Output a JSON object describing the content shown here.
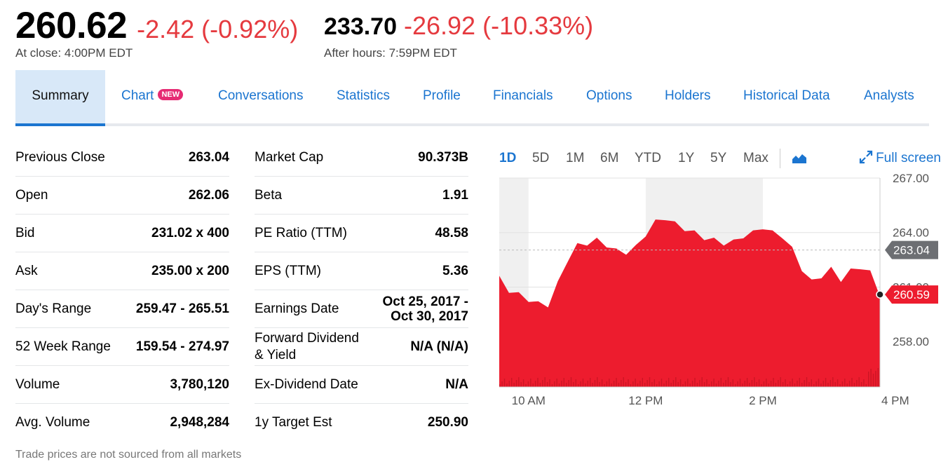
{
  "quote": {
    "price": "260.62",
    "change": "-2.42 (-0.92%)",
    "close_label": "At close: 4:00PM EDT",
    "after_price": "233.70",
    "after_change": "-26.92 (-10.33%)",
    "after_label": "After hours: 7:59PM EDT"
  },
  "tabs": [
    {
      "label": "Summary"
    },
    {
      "label": "Chart",
      "badge": "NEW"
    },
    {
      "label": "Conversations"
    },
    {
      "label": "Statistics"
    },
    {
      "label": "Profile"
    },
    {
      "label": "Financials"
    },
    {
      "label": "Options"
    },
    {
      "label": "Holders"
    },
    {
      "label": "Historical Data"
    },
    {
      "label": "Analysts"
    }
  ],
  "summary_left": [
    {
      "label": "Previous Close",
      "value": "263.04"
    },
    {
      "label": "Open",
      "value": "262.06"
    },
    {
      "label": "Bid",
      "value": "231.02 x 400"
    },
    {
      "label": "Ask",
      "value": "235.00 x 200"
    },
    {
      "label": "Day's Range",
      "value": "259.47 - 265.51"
    },
    {
      "label": "52 Week Range",
      "value": "159.54 - 274.97"
    },
    {
      "label": "Volume",
      "value": "3,780,120"
    },
    {
      "label": "Avg. Volume",
      "value": "2,948,284"
    }
  ],
  "summary_right": [
    {
      "label": "Market Cap",
      "value": "90.373B"
    },
    {
      "label": "Beta",
      "value": "1.91"
    },
    {
      "label": "PE Ratio (TTM)",
      "value": "48.58"
    },
    {
      "label": "EPS (TTM)",
      "value": "5.36"
    },
    {
      "label": "Earnings Date",
      "value_line1": "Oct 25, 2017 -",
      "value_line2": "Oct 30, 2017"
    },
    {
      "label_line1": "Forward Dividend",
      "label_line2": "& Yield",
      "value": "N/A (N/A)"
    },
    {
      "label": "Ex-Dividend Date",
      "value": "N/A"
    },
    {
      "label": "1y Target Est",
      "value": "250.90"
    }
  ],
  "footnote": "Trade prices are not sourced from all markets",
  "range_buttons": [
    "1D",
    "5D",
    "1M",
    "6M",
    "YTD",
    "1Y",
    "5Y",
    "Max"
  ],
  "active_range": "1D",
  "chart_type_icon": "mountain-chart-icon",
  "fullscreen_label": "Full screen",
  "chart_data": {
    "type": "area",
    "x_ticks": [
      "10 AM",
      "12 PM",
      "2 PM",
      "4 PM"
    ],
    "y_ticks": [
      "267.00",
      "264.00",
      "261.00",
      "258.00"
    ],
    "ylim": [
      255.5,
      267.0
    ],
    "previous_close": "263.04",
    "last_price": "260.59",
    "color": "#ed1c2e",
    "shaded_hours": [
      "9:30-10:00",
      "12:00-14:00"
    ],
    "series": [
      {
        "x": [
          "09:30",
          "09:40",
          "09:50",
          "10:00",
          "10:10",
          "10:20",
          "10:30",
          "10:40",
          "10:50",
          "11:00",
          "11:10",
          "11:20",
          "11:30",
          "11:40",
          "11:50",
          "12:00",
          "12:10",
          "12:20",
          "12:30",
          "12:40",
          "12:50",
          "13:00",
          "13:10",
          "13:20",
          "13:30",
          "13:40",
          "13:50",
          "14:00",
          "14:10",
          "14:20",
          "14:30",
          "14:40",
          "14:50",
          "15:00",
          "15:10",
          "15:20",
          "15:30",
          "15:40",
          "15:50",
          "16:00"
        ],
        "values": [
          261.5,
          260.8,
          260.6,
          260.3,
          260.1,
          260.0,
          261.2,
          262.5,
          263.3,
          263.4,
          263.6,
          263.3,
          263.0,
          262.9,
          263.2,
          263.9,
          264.6,
          264.8,
          264.5,
          264.2,
          264.0,
          263.7,
          263.6,
          263.4,
          263.5,
          263.8,
          264.0,
          264.3,
          264.0,
          263.8,
          263.1,
          262.0,
          261.3,
          261.6,
          262.0,
          261.4,
          261.9,
          262.1,
          261.8,
          260.6
        ]
      }
    ]
  }
}
